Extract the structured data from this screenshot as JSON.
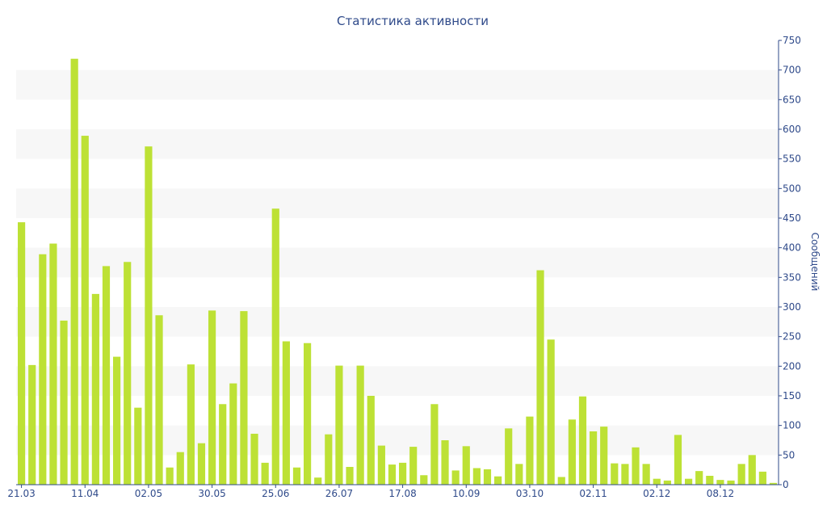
{
  "chart_data": {
    "type": "bar",
    "title": "Статистика активности",
    "xlabel": "",
    "ylabel": "Сообщений",
    "ylim": [
      0,
      750
    ],
    "yticks": [
      0,
      50,
      100,
      150,
      200,
      250,
      300,
      350,
      400,
      450,
      500,
      550,
      600,
      650,
      700,
      750
    ],
    "y_axis_position": "right",
    "grid": "alternating-horizontal-bands",
    "legend": "none",
    "bar_color": "#bde135",
    "band_color": "#f7f7f7",
    "text_color": "#2f4a8a",
    "x_tick_labels": [
      {
        "label": "21.03",
        "index": 0
      },
      {
        "label": "11.04",
        "index": 6
      },
      {
        "label": "02.05",
        "index": 12
      },
      {
        "label": "30.05",
        "index": 18
      },
      {
        "label": "25.06",
        "index": 24
      },
      {
        "label": "26.07",
        "index": 30
      },
      {
        "label": "17.08",
        "index": 36
      },
      {
        "label": "10.09",
        "index": 42
      },
      {
        "label": "03.10",
        "index": 48
      },
      {
        "label": "02.11",
        "index": 54
      },
      {
        "label": "02.12",
        "index": 60
      },
      {
        "label": "08.12",
        "index": 66
      }
    ],
    "values": [
      443,
      202,
      389,
      407,
      277,
      719,
      589,
      322,
      369,
      216,
      376,
      130,
      571,
      286,
      29,
      55,
      203,
      70,
      294,
      136,
      171,
      293,
      86,
      37,
      466,
      242,
      29,
      239,
      12,
      85,
      201,
      30,
      201,
      150,
      66,
      34,
      37,
      64,
      16,
      136,
      75,
      24,
      65,
      28,
      26,
      14,
      95,
      35,
      115,
      362,
      245,
      13,
      110,
      149,
      90,
      98,
      36,
      35,
      63,
      35,
      10,
      7,
      84,
      10,
      23,
      15,
      8,
      7,
      35,
      50,
      22,
      3
    ]
  }
}
